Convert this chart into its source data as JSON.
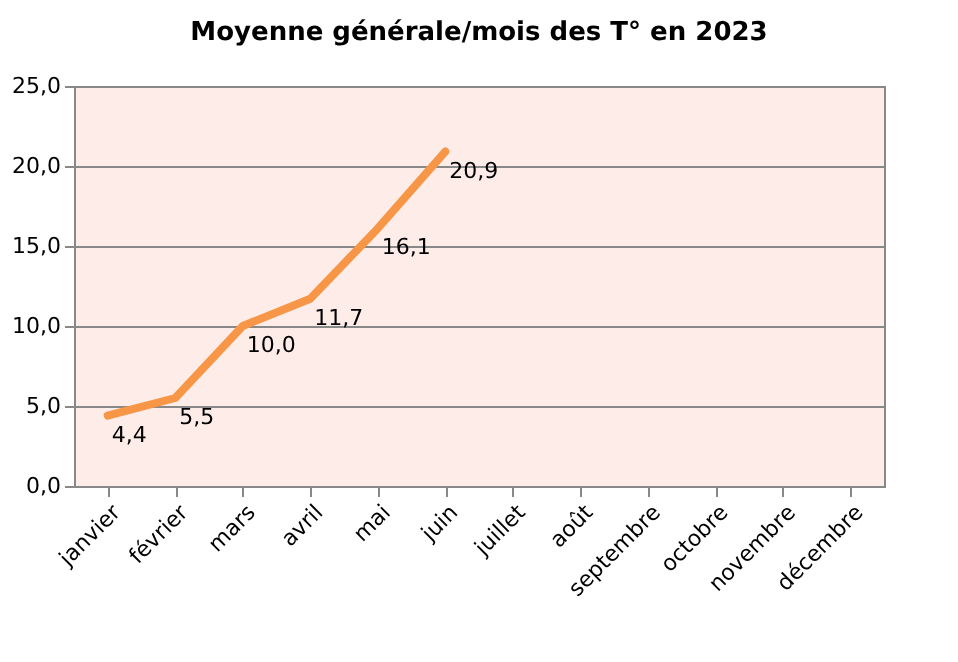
{
  "chart_data": {
    "type": "line",
    "title": "Moyenne générale/mois des T° en 2023",
    "categories": [
      "janvier",
      "février",
      "mars",
      "avril",
      "mai",
      "juin",
      "juillet",
      "août",
      "septembre",
      "octobre",
      "novembre",
      "décembre"
    ],
    "series": [
      {
        "color": "#f79646",
        "values": [
          4.4,
          5.5,
          10.0,
          11.7,
          16.1,
          20.9,
          null,
          null,
          null,
          null,
          null,
          null
        ],
        "value_labels": [
          "4,4",
          "5,5",
          "10,0",
          "11,7",
          "16,1",
          "20,9",
          null,
          null,
          null,
          null,
          null,
          null
        ]
      }
    ],
    "ylim": [
      0,
      25
    ],
    "yticks": [
      {
        "value": 0,
        "label": "0,0"
      },
      {
        "value": 5,
        "label": "5,0"
      },
      {
        "value": 10,
        "label": "10,0"
      },
      {
        "value": 15,
        "label": "15,0"
      },
      {
        "value": 20,
        "label": "20,0"
      },
      {
        "value": 25,
        "label": "25,0"
      }
    ],
    "grid": "y",
    "marker": "none",
    "line_style": "solid"
  }
}
